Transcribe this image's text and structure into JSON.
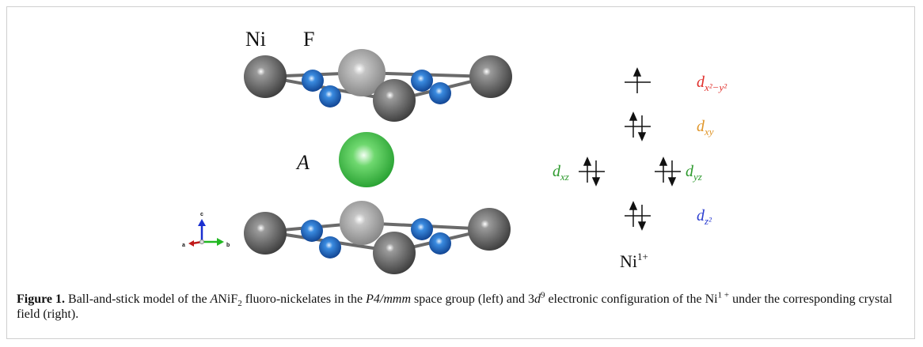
{
  "figure": {
    "structure_labels": {
      "ni": "Ni",
      "f": "F",
      "a_site": "A"
    },
    "axes": {
      "a": "a",
      "b": "b",
      "c": "c"
    },
    "orbitals": [
      {
        "symbol": "d",
        "subscript": "x²−y²"
      },
      {
        "symbol": "d",
        "subscript": "xy"
      },
      {
        "symbol": "d",
        "subscript": "xz"
      },
      {
        "symbol": "d",
        "subscript": "yz"
      },
      {
        "symbol": "d",
        "subscript": "z²"
      }
    ],
    "ion": {
      "symbol": "Ni",
      "charge": "1+"
    }
  },
  "caption": {
    "label": "Figure 1.",
    "segments": [
      " Ball-and-stick model of the ",
      "A",
      "NiF",
      "2",
      " fluoro-nickelates in the ",
      "P4/mmm",
      " space group (left) and 3",
      "d",
      "9",
      " electronic configuration of the Ni",
      "1 +",
      " under the corresponding crystal field (right)."
    ]
  }
}
